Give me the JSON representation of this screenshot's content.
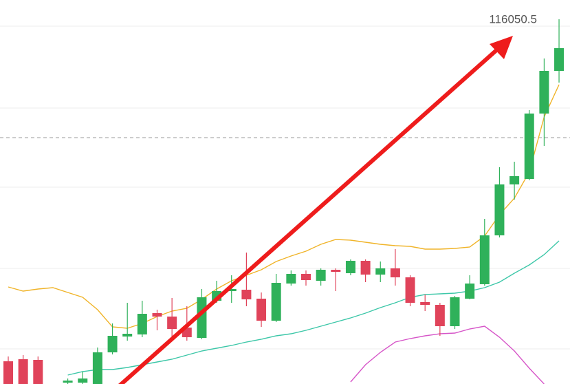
{
  "chart_data": {
    "type": "candlestick",
    "annotation": "116050.5",
    "ylim": [
      105440,
      116600
    ],
    "up_color": "#2fb15a",
    "down_color": "#e0435a",
    "open": [
      106100,
      106160,
      106140,
      null,
      105480,
      105480,
      105440,
      106360,
      106820,
      106880,
      107500,
      107400,
      107080,
      106780,
      107860,
      108140,
      108180,
      107920,
      107280,
      108360,
      108640,
      108440,
      108760,
      108660,
      109020,
      108620,
      108800,
      108540,
      107820,
      107740,
      107120,
      107920,
      108340,
      109760,
      111240,
      111400,
      113300,
      114540
    ],
    "high": [
      106240,
      106280,
      106240,
      null,
      105600,
      105800,
      106500,
      107200,
      107800,
      107860,
      107600,
      107940,
      107700,
      108200,
      108440,
      108600,
      109260,
      108100,
      108640,
      108740,
      108740,
      108800,
      108800,
      109060,
      109060,
      109000,
      109360,
      108600,
      108040,
      107800,
      108000,
      108600,
      110240,
      111740,
      111900,
      113400,
      114900,
      116040
    ],
    "low": [
      105440,
      105440,
      105440,
      null,
      105440,
      105440,
      105440,
      106300,
      106700,
      106800,
      107000,
      106800,
      106700,
      106740,
      107800,
      107800,
      107700,
      107100,
      107240,
      108300,
      108300,
      108300,
      108140,
      108600,
      108400,
      108400,
      108300,
      107700,
      107560,
      106840,
      107040,
      107900,
      108300,
      109700,
      110800,
      111360,
      112360,
      114200
    ],
    "close": [
      105440,
      105440,
      105440,
      null,
      105540,
      105600,
      106360,
      106840,
      106900,
      107480,
      107400,
      107040,
      106800,
      107960,
      108140,
      108200,
      107900,
      107280,
      108380,
      108640,
      108460,
      108760,
      108700,
      109020,
      108620,
      108800,
      108540,
      107800,
      107740,
      107120,
      107960,
      108360,
      109760,
      111240,
      111480,
      113300,
      114540,
      115200
    ],
    "series": [
      {
        "color": "#f0b429",
        "values": [
          108260,
          108140,
          108200,
          108240,
          108100,
          107960,
          107600,
          107100,
          107060,
          107200,
          107400,
          107560,
          107640,
          107900,
          108200,
          108440,
          108600,
          108760,
          109000,
          109160,
          109300,
          109500,
          109640,
          109620,
          109560,
          109500,
          109460,
          109440,
          109360,
          109360,
          109380,
          109420,
          109740,
          110360,
          110840,
          111600,
          113200,
          114140
        ]
      },
      {
        "color": "#3cc7a8",
        "values": [
          null,
          null,
          null,
          null,
          105700,
          105800,
          105860,
          105860,
          105920,
          106000,
          106080,
          106160,
          106280,
          106400,
          106480,
          106560,
          106660,
          106740,
          106840,
          106900,
          107000,
          107120,
          107240,
          107360,
          107500,
          107660,
          107800,
          107960,
          108040,
          108060,
          108080,
          108140,
          108240,
          108400,
          108660,
          108900,
          109200,
          109600
        ]
      },
      {
        "color": "#d655c8",
        "values": [
          null,
          null,
          null,
          null,
          null,
          null,
          null,
          null,
          null,
          null,
          null,
          null,
          null,
          null,
          null,
          null,
          null,
          null,
          null,
          null,
          null,
          null,
          null,
          105500,
          106000,
          106360,
          106660,
          106760,
          106840,
          106900,
          106920,
          107040,
          107120,
          106800,
          106400,
          105900,
          105440,
          null
        ]
      }
    ]
  }
}
